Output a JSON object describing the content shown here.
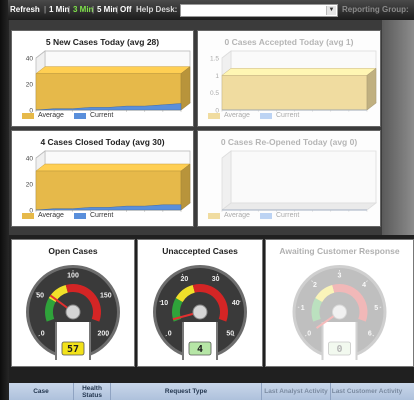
{
  "toolbar": {
    "refresh_label": "Refresh",
    "sep": "|",
    "interval_1": "1 Min",
    "interval_3": "3 Min",
    "interval_5": "5 Min",
    "interval_off": "Off",
    "selected_interval": "3 Min",
    "helpdesk_label": "Help Desk:",
    "helpdesk_value": "",
    "reporting_label": "Reporting Group:"
  },
  "charts": [
    {
      "title": "5 New Cases Today (avg 28)",
      "faded": false,
      "yticks": [
        "0",
        "20",
        "40"
      ],
      "ylim": [
        0,
        40
      ],
      "average": 28,
      "current": [
        0,
        1,
        1,
        2,
        2,
        3,
        3,
        4,
        5
      ],
      "legend": [
        "Average",
        "Current"
      ]
    },
    {
      "title": "0 Cases Accepted Today (avg 1)",
      "faded": true,
      "yticks": [
        "0",
        "0.5",
        "1",
        "1.5"
      ],
      "ylim": [
        0,
        1.5
      ],
      "average": 1,
      "current": [
        0,
        0,
        0,
        0,
        0,
        0,
        0,
        0,
        0
      ],
      "legend": [
        "Average",
        "Current"
      ]
    },
    {
      "title": "4 Cases Closed Today (avg 30)",
      "faded": false,
      "yticks": [
        "0",
        "20",
        "40"
      ],
      "ylim": [
        0,
        40
      ],
      "average": 30,
      "current": [
        0,
        1,
        1,
        2,
        2,
        3,
        3,
        4,
        4
      ],
      "legend": [
        "Average",
        "Current"
      ]
    },
    {
      "title": "0 Cases Re-Opened Today (avg 0)",
      "faded": true,
      "yticks": [],
      "ylim": [
        0,
        1
      ],
      "average": 0,
      "current": [
        0,
        0,
        0,
        0,
        0,
        0,
        0,
        0,
        0
      ],
      "legend": [
        "Average",
        "Current"
      ]
    }
  ],
  "gauges": [
    {
      "title": "Open Cases",
      "faded": false,
      "ticks": [
        "0",
        "50",
        "100",
        "150",
        "200"
      ],
      "max": 200,
      "value": 57,
      "display": "57"
    },
    {
      "title": "Unaccepted Cases",
      "faded": false,
      "ticks": [
        "0",
        "10",
        "20",
        "30",
        "40",
        "50"
      ],
      "max": 50,
      "value": 4,
      "display": "4"
    },
    {
      "title": "Awaiting Customer Response",
      "faded": true,
      "ticks": [
        "0",
        "1",
        "2",
        "3",
        "4",
        "5",
        "6"
      ],
      "max": 6,
      "value": 0,
      "display": "0"
    }
  ],
  "colors": {
    "average": "#e6b94a",
    "current": "#5a8fdb",
    "average_faded": "#f0dca0",
    "current_faded": "#bcd3f3",
    "gauge_digit_active": "#f2e21a",
    "gauge_digit_green": "#b6e6a6",
    "gauge_digit_faded": "#d8efd0"
  },
  "table_header": {
    "case": "Case",
    "health_status": "Health Status",
    "request_type": "Request Type",
    "last_analyst_activity": "Last Analyst Activity",
    "last_customer_activity": "Last Customer Activity"
  }
}
